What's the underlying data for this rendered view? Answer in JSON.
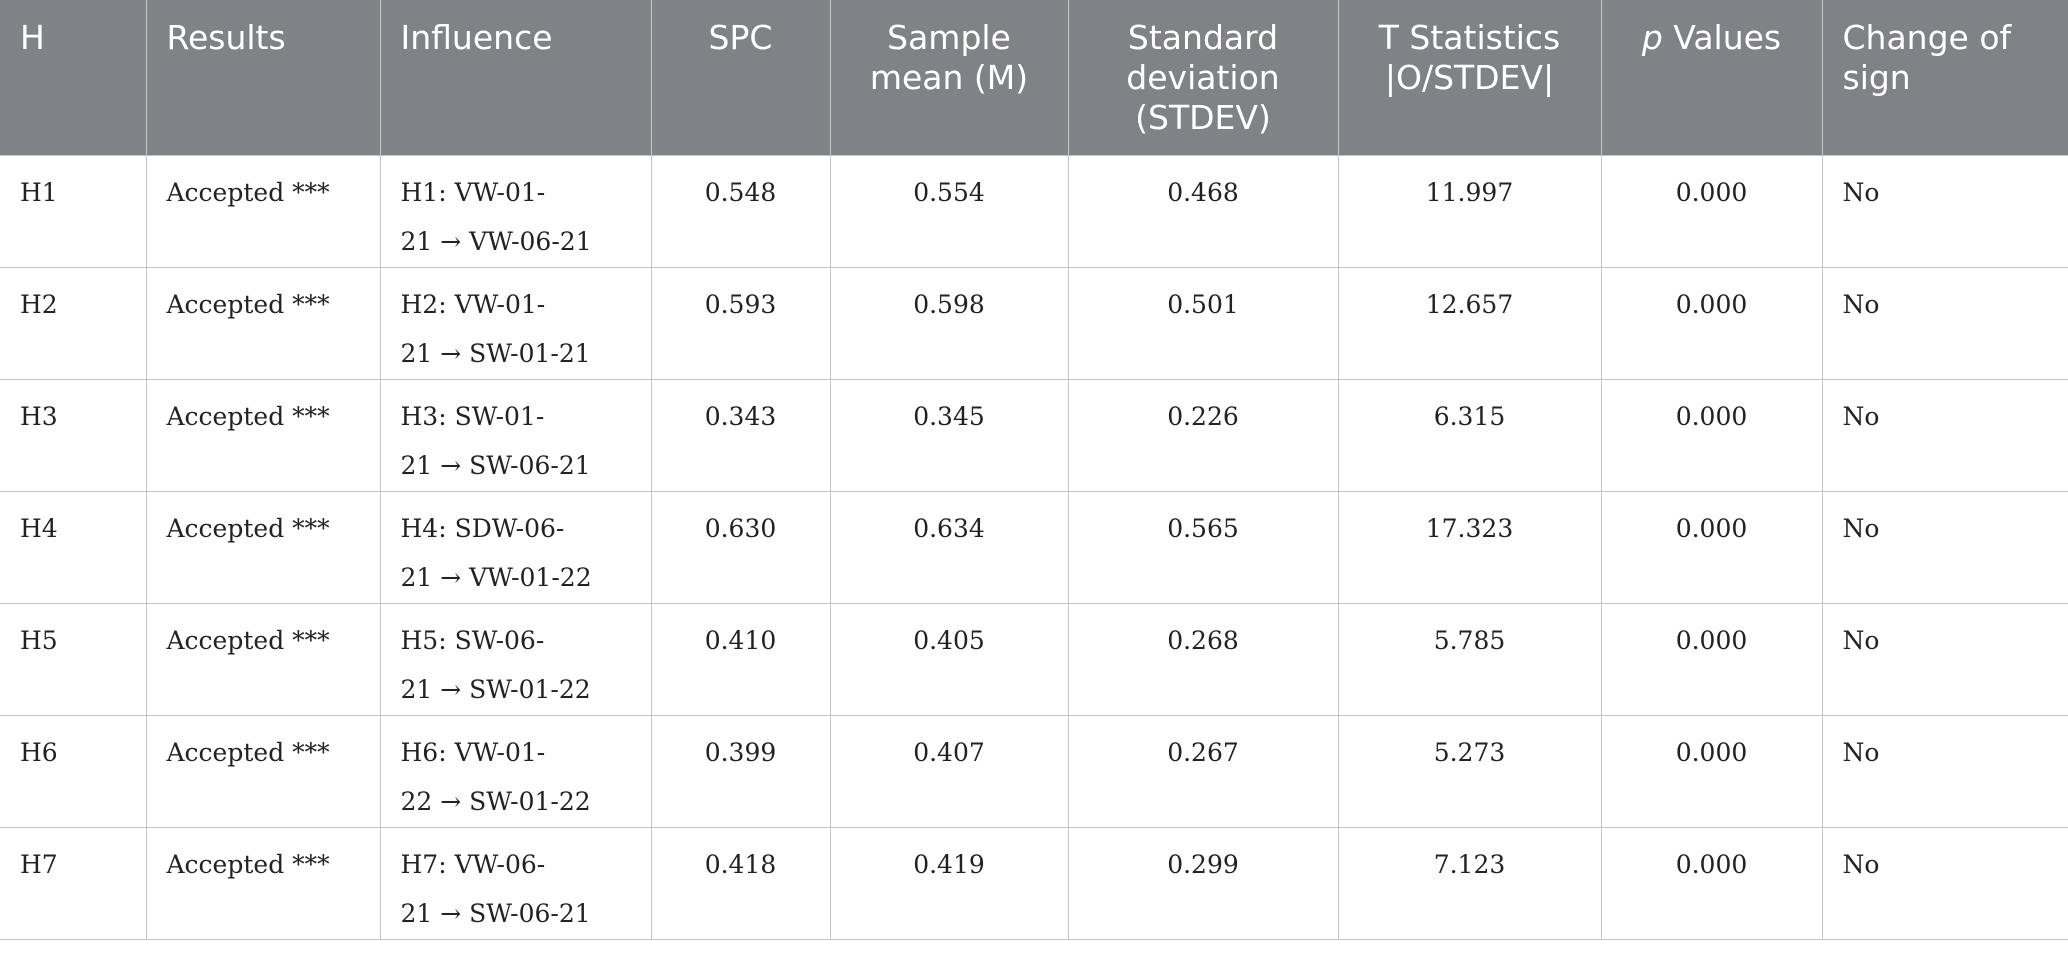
{
  "table": {
    "headers": {
      "h": "H",
      "results": "Results",
      "influence": "Influence",
      "spc": "SPC",
      "sample_mean": "Sample mean (M)",
      "std_dev": "Standard deviation (STDEV)",
      "t_stat": "T Statistics |O/STDEV|",
      "p_italic": "p",
      "p_rest": " Values",
      "change_of_sign": "Change of sign"
    },
    "rows": [
      {
        "h": "H1",
        "result": "Accepted ***",
        "influence": "H1: VW-01-\n21 → VW-06-21",
        "spc": "0.548",
        "mean": "0.554",
        "stdev": "0.468",
        "t": "11.997",
        "p": "0.000",
        "sign": "No"
      },
      {
        "h": "H2",
        "result": "Accepted ***",
        "influence": "H2: VW-01-\n21 → SW-01-21",
        "spc": "0.593",
        "mean": "0.598",
        "stdev": "0.501",
        "t": "12.657",
        "p": "0.000",
        "sign": "No"
      },
      {
        "h": "H3",
        "result": "Accepted ***",
        "influence": "H3: SW-01-\n21 → SW-06-21",
        "spc": "0.343",
        "mean": "0.345",
        "stdev": "0.226",
        "t": "6.315",
        "p": "0.000",
        "sign": "No"
      },
      {
        "h": "H4",
        "result": "Accepted ***",
        "influence": "H4: SDW-06-\n21 → VW-01-22",
        "spc": "0.630",
        "mean": "0.634",
        "stdev": "0.565",
        "t": "17.323",
        "p": "0.000",
        "sign": "No"
      },
      {
        "h": "H5",
        "result": "Accepted ***",
        "influence": "H5: SW-06-\n21 → SW-01-22",
        "spc": "0.410",
        "mean": "0.405",
        "stdev": "0.268",
        "t": "5.785",
        "p": "0.000",
        "sign": "No"
      },
      {
        "h": "H6",
        "result": "Accepted ***",
        "influence": "H6: VW-01-\n22 → SW-01-22",
        "spc": "0.399",
        "mean": "0.407",
        "stdev": "0.267",
        "t": "5.273",
        "p": "0.000",
        "sign": "No"
      },
      {
        "h": "H7",
        "result": "Accepted ***",
        "influence": "H7: VW-06-\n21 → SW-06-21",
        "spc": "0.418",
        "mean": "0.419",
        "stdev": "0.299",
        "t": "7.123",
        "p": "0.000",
        "sign": "No"
      }
    ]
  }
}
